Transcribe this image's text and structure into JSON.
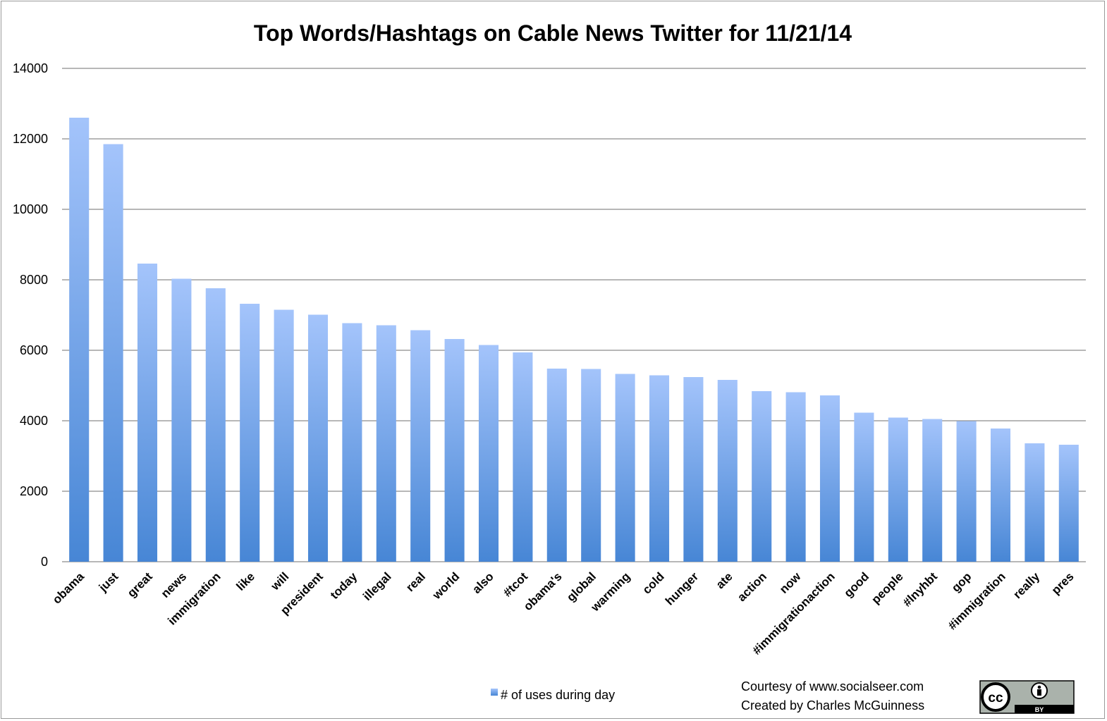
{
  "chart_data": {
    "type": "bar",
    "title": "Top Words/Hashtags on Cable News Twitter for 11/21/14",
    "xlabel": "",
    "ylabel": "",
    "ylim": [
      0,
      14000
    ],
    "yticks": [
      "0",
      "2000",
      "4000",
      "6000",
      "8000",
      "10000",
      "12000",
      "14000"
    ],
    "grid": true,
    "legend_position": "bottom",
    "categories": [
      "obama",
      "just",
      "great",
      "news",
      "immigration",
      "like",
      "will",
      "president",
      "today",
      "illegal",
      "real",
      "world",
      "also",
      "#tcot",
      "obama's",
      "global",
      "warming",
      "cold",
      "hunger",
      "ate",
      "action",
      "now",
      "#immigrationaction",
      "good",
      "people",
      "#lnyhbt",
      "gop",
      "#immigration",
      "really",
      "pres"
    ],
    "series": [
      {
        "name": "# of uses during day",
        "values": [
          12600,
          11850,
          8460,
          8030,
          7760,
          7320,
          7150,
          7010,
          6770,
          6710,
          6570,
          6320,
          6150,
          5940,
          5480,
          5470,
          5330,
          5290,
          5240,
          5160,
          4840,
          4810,
          4720,
          4230,
          4090,
          4050,
          3990,
          3780,
          3360,
          3320
        ]
      }
    ],
    "colors": {
      "bar_top": "#a4c4fb",
      "bar_bottom": "#4786d5",
      "gridline": "#8c8c8c"
    }
  },
  "credits": {
    "line1": "Courtesy of www.socialseer.com",
    "line2": "Created by Charles McGuinness"
  },
  "license_badge": {
    "icon": "cc-by-icon",
    "text": "cc",
    "sub": "BY"
  }
}
